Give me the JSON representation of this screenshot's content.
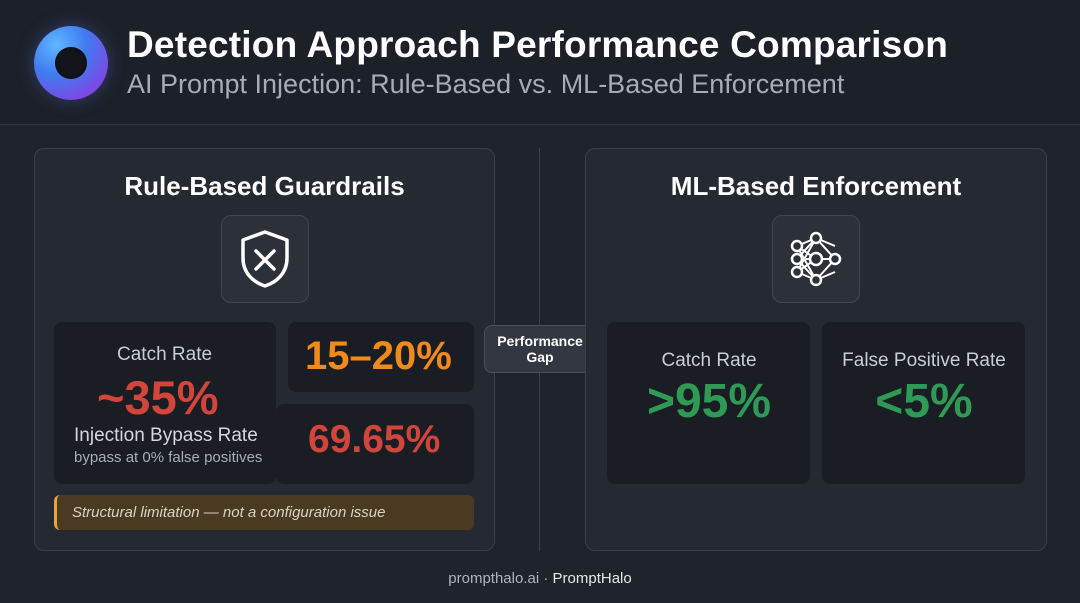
{
  "header": {
    "title": "Detection Approach Performance Comparison",
    "subtitle": "AI Prompt Injection: Rule-Based vs. ML-Based Enforcement",
    "logo_icon": "prompthalo-ring-logo"
  },
  "colors": {
    "background": "#1f232b",
    "panel": "#252931",
    "red_stat": "#d2453b",
    "orange_stat": "#f08a1c",
    "green_stat": "#2f9a55",
    "note_accent": "#e8a33a"
  },
  "left_panel": {
    "title": "Rule-Based Guardrails",
    "icon": "shield-x-icon",
    "catch_rate_label": "Catch Rate",
    "catch_rate_value": "~35%",
    "gap_range_value": "15–20%",
    "bypass_label": "Injection Bypass Rate",
    "bypass_sublabel": "bypass at 0% false positives",
    "bypass_value": "69.65%",
    "note": "Structural limitation — not a configuration issue"
  },
  "center": {
    "gap_label_line1": "Performance",
    "gap_label_line2": "Gap"
  },
  "right_panel": {
    "title": "ML-Based Enforcement",
    "icon": "neural-network-icon",
    "catch_rate_label": "Catch Rate",
    "catch_rate_value": ">95%",
    "false_positive_label": "False Positive Rate",
    "false_positive_value": "<5%"
  },
  "footer": {
    "domain": "prompthalo.ai",
    "separator": "·",
    "brand": "PromptHalo"
  }
}
